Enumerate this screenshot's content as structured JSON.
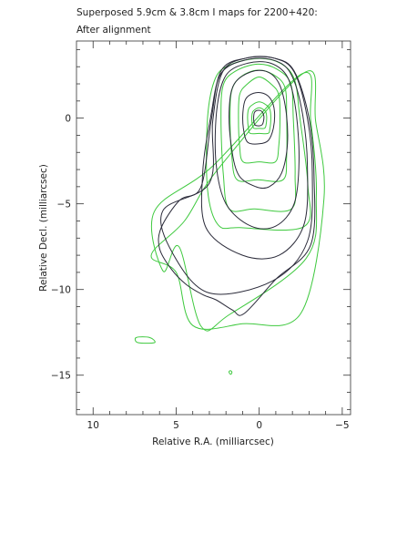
{
  "chart_data": {
    "type": "contour",
    "title": "Superposed 5.9cm & 3.8cm I maps for 2200+420:",
    "subtitle": "After alignment",
    "xlabel": "Relative R.A. (milliarcsec)",
    "ylabel": "Relative Decl. (milliarcsec)",
    "xlim": [
      11,
      -5.5
    ],
    "ylim": [
      -17.3,
      4.5
    ],
    "x_ticks": [
      10,
      5,
      0,
      -5
    ],
    "y_ticks": [
      0,
      -5,
      -10,
      -15
    ],
    "x_tick_labels": [
      "10",
      "5",
      "0",
      "−5"
    ],
    "y_tick_labels": [
      "0",
      "−5",
      "−10",
      "−15"
    ],
    "grid": false,
    "colors": {
      "green_map": "#3ec93e",
      "dark_map": "#2b2b3a"
    },
    "series": [
      {
        "name": "",
        "color": "#3ec93e",
        "contours": [
          [
            [
              0.0,
              -0.6
            ],
            [
              0.3,
              -0.6
            ],
            [
              0.4,
              -0.45
            ],
            [
              0.45,
              -0.0
            ],
            [
              0.4,
              0.35
            ],
            [
              0.25,
              0.5
            ],
            [
              0.0,
              0.6
            ],
            [
              -0.25,
              0.5
            ],
            [
              -0.4,
              0.35
            ],
            [
              -0.45,
              -0.0
            ],
            [
              -0.4,
              -0.45
            ],
            [
              -0.3,
              -0.6
            ]
          ],
          [
            [
              0.0,
              -0.89
            ],
            [
              0.53,
              -0.89
            ],
            [
              0.64,
              -0.64
            ],
            [
              0.7,
              -0.0
            ],
            [
              0.64,
              0.53
            ],
            [
              0.41,
              0.78
            ],
            [
              0.0,
              0.95
            ],
            [
              -0.41,
              0.78
            ],
            [
              -0.64,
              0.53
            ],
            [
              -0.7,
              -0.0
            ],
            [
              -0.64,
              -0.64
            ],
            [
              -0.53,
              -0.89
            ]
          ],
          [
            [
              0.0,
              -2.55
            ],
            [
              0.97,
              -2.55
            ],
            [
              1.18,
              -1.6
            ],
            [
              1.25,
              -0.0
            ],
            [
              1.18,
              1.35
            ],
            [
              0.77,
              1.94
            ],
            [
              0.0,
              2.4
            ],
            [
              -0.77,
              1.94
            ],
            [
              -1.18,
              1.35
            ],
            [
              -1.25,
              -0.0
            ],
            [
              -1.18,
              -1.6
            ],
            [
              -0.97,
              -2.55
            ]
          ],
          [
            [
              0.1,
              -3.6
            ],
            [
              1.33,
              -3.6
            ],
            [
              1.65,
              -2.25
            ],
            [
              1.75,
              -0.0
            ],
            [
              1.65,
              1.63
            ],
            [
              1.08,
              2.43
            ],
            [
              0.1,
              2.8
            ],
            [
              -0.83,
              2.55
            ],
            [
              -1.55,
              1.8
            ],
            [
              -1.65,
              -0.0
            ],
            [
              -1.65,
              -2.25
            ],
            [
              -1.43,
              -3.6
            ]
          ],
          [
            [
              0.3,
              -5.3
            ],
            [
              1.8,
              -5.3
            ],
            [
              2.16,
              -3.3
            ],
            [
              2.3,
              -0.0
            ],
            [
              2.16,
              1.95
            ],
            [
              1.41,
              2.75
            ],
            [
              0.1,
              3.15
            ],
            [
              -1.06,
              2.86
            ],
            [
              -1.9,
              2.0
            ],
            [
              -2.05,
              -0.0
            ],
            [
              -2.16,
              -3.3
            ],
            [
              -1.94,
              -5.3
            ]
          ],
          [
            [
              1.18,
              -6.39
            ],
            [
              2.48,
              -6.22
            ],
            [
              3.11,
              -4.15
            ],
            [
              3.11,
              -0.0
            ],
            [
              2.64,
              2.32
            ],
            [
              1.72,
              3.12
            ],
            [
              0.07,
              3.48
            ],
            [
              -1.29,
              3.19
            ],
            [
              -2.13,
              2.23
            ],
            [
              -2.45,
              -0.0
            ],
            [
              -2.93,
              -3.92
            ],
            [
              -2.7,
              -6.33
            ]
          ],
          [
            [
              4.82,
              -7.51
            ],
            [
              5.78,
              -8.93
            ],
            [
              6.32,
              -5.46
            ],
            [
              2.8,
              -2.8
            ],
            [
              -2.6,
              2.6
            ],
            [
              -3.1,
              -0.1
            ],
            [
              -3.44,
              -4.55
            ],
            [
              -2.82,
              -8.19
            ],
            [
              1.82,
              -11.48
            ],
            [
              3.5,
              -12.14
            ]
          ],
          [
            [
              5.0,
              -9.0
            ],
            [
              6.5,
              -8.0
            ],
            [
              4.5,
              -6.0
            ],
            [
              2.5,
              -3.0
            ],
            [
              -2.8,
              2.7
            ],
            [
              -3.4,
              -0.2
            ],
            [
              -3.9,
              -4.7
            ],
            [
              -2.5,
              -11.4
            ],
            [
              1.0,
              -12.0
            ],
            [
              4.0,
              -12.1
            ]
          ],
          [
            [
              6.6,
              -12.8
            ],
            [
              6.3,
              -13.1
            ],
            [
              7.3,
              -13.1
            ],
            [
              7.4,
              -12.8
            ]
          ],
          [
            [
              1.73,
              -14.73
            ],
            [
              1.64,
              -14.83
            ],
            [
              1.72,
              -14.95
            ],
            [
              1.82,
              -14.81
            ]
          ]
        ]
      },
      {
        "name": "",
        "color": "#2b2b3a",
        "contours": [
          [
            [
              0.0,
              -0.45
            ],
            [
              0.25,
              -0.4
            ],
            [
              0.32,
              -0.2
            ],
            [
              0.33,
              0.1
            ],
            [
              0.28,
              0.35
            ],
            [
              0.12,
              0.45
            ],
            [
              -0.05,
              0.45
            ],
            [
              -0.2,
              0.35
            ],
            [
              -0.28,
              0.12
            ],
            [
              -0.26,
              -0.18
            ],
            [
              -0.18,
              -0.38
            ]
          ],
          [
            [
              0.0,
              -1.5
            ],
            [
              0.7,
              -1.4
            ],
            [
              0.95,
              -0.6
            ],
            [
              0.98,
              0.35
            ],
            [
              0.82,
              1.1
            ],
            [
              0.35,
              1.45
            ],
            [
              -0.25,
              1.45
            ],
            [
              -0.7,
              1.1
            ],
            [
              -0.92,
              0.4
            ],
            [
              -0.85,
              -0.6
            ],
            [
              -0.55,
              -1.3
            ]
          ],
          [
            [
              0.2,
              -4.0
            ],
            [
              1.25,
              -3.3
            ],
            [
              1.7,
              -1.5
            ],
            [
              1.8,
              0.6
            ],
            [
              1.5,
              2.0
            ],
            [
              0.5,
              2.7
            ],
            [
              -0.5,
              2.7
            ],
            [
              -1.2,
              2.0
            ],
            [
              -1.6,
              0.5
            ],
            [
              -1.7,
              -1.5
            ],
            [
              -1.35,
              -3.2
            ],
            [
              -0.6,
              -4.0
            ]
          ],
          [
            [
              0.5,
              -6.3
            ],
            [
              2.0,
              -5.0
            ],
            [
              2.6,
              -2.6
            ],
            [
              2.55,
              0.5
            ],
            [
              2.0,
              2.5
            ],
            [
              0.7,
              3.2
            ],
            [
              -0.7,
              3.2
            ],
            [
              -1.7,
              2.4
            ],
            [
              -2.2,
              0.5
            ],
            [
              -2.4,
              -2.5
            ],
            [
              -2.1,
              -5.0
            ],
            [
              -1.0,
              -6.3
            ]
          ],
          [
            [
              1.0,
              -8.0
            ],
            [
              3.2,
              -6.4
            ],
            [
              3.4,
              -3.2
            ],
            [
              2.9,
              0.2
            ],
            [
              2.3,
              2.6
            ],
            [
              0.8,
              3.4
            ],
            [
              -0.8,
              3.4
            ],
            [
              -1.9,
              2.6
            ],
            [
              -2.6,
              0.3
            ],
            [
              -2.9,
              -2.8
            ],
            [
              -2.7,
              -6.2
            ],
            [
              -1.2,
              -8.0
            ]
          ],
          [
            [
              3.0,
              -10.2
            ],
            [
              5.2,
              -7.9
            ],
            [
              5.8,
              -5.4
            ],
            [
              3.0,
              -3.8
            ],
            [
              2.8,
              -0.2
            ],
            [
              2.2,
              2.7
            ],
            [
              0.8,
              3.5
            ],
            [
              -0.9,
              3.5
            ],
            [
              -2.1,
              2.7
            ],
            [
              -2.9,
              0.0
            ],
            [
              -3.2,
              -3.2
            ],
            [
              -2.9,
              -7.2
            ],
            [
              -0.8,
              -9.5
            ]
          ],
          [
            [
              0.9,
              -11.4
            ],
            [
              1.6,
              -11.2
            ],
            [
              2.6,
              -10.6
            ],
            [
              3.4,
              -10.3
            ],
            [
              4.4,
              -9.7
            ],
            [
              5.3,
              -8.8
            ],
            [
              6.0,
              -7.6
            ],
            [
              5.9,
              -6.4
            ],
            [
              4.8,
              -4.8
            ],
            [
              3.5,
              -4.0
            ],
            [
              2.9,
              -0.2
            ],
            [
              2.3,
              2.75
            ],
            [
              0.8,
              3.5
            ],
            [
              -0.9,
              3.5
            ],
            [
              -2.1,
              2.75
            ],
            [
              -3.0,
              0.0
            ],
            [
              -3.3,
              -3.4
            ],
            [
              -3.1,
              -7.4
            ],
            [
              -1.0,
              -9.4
            ]
          ]
        ]
      }
    ]
  }
}
